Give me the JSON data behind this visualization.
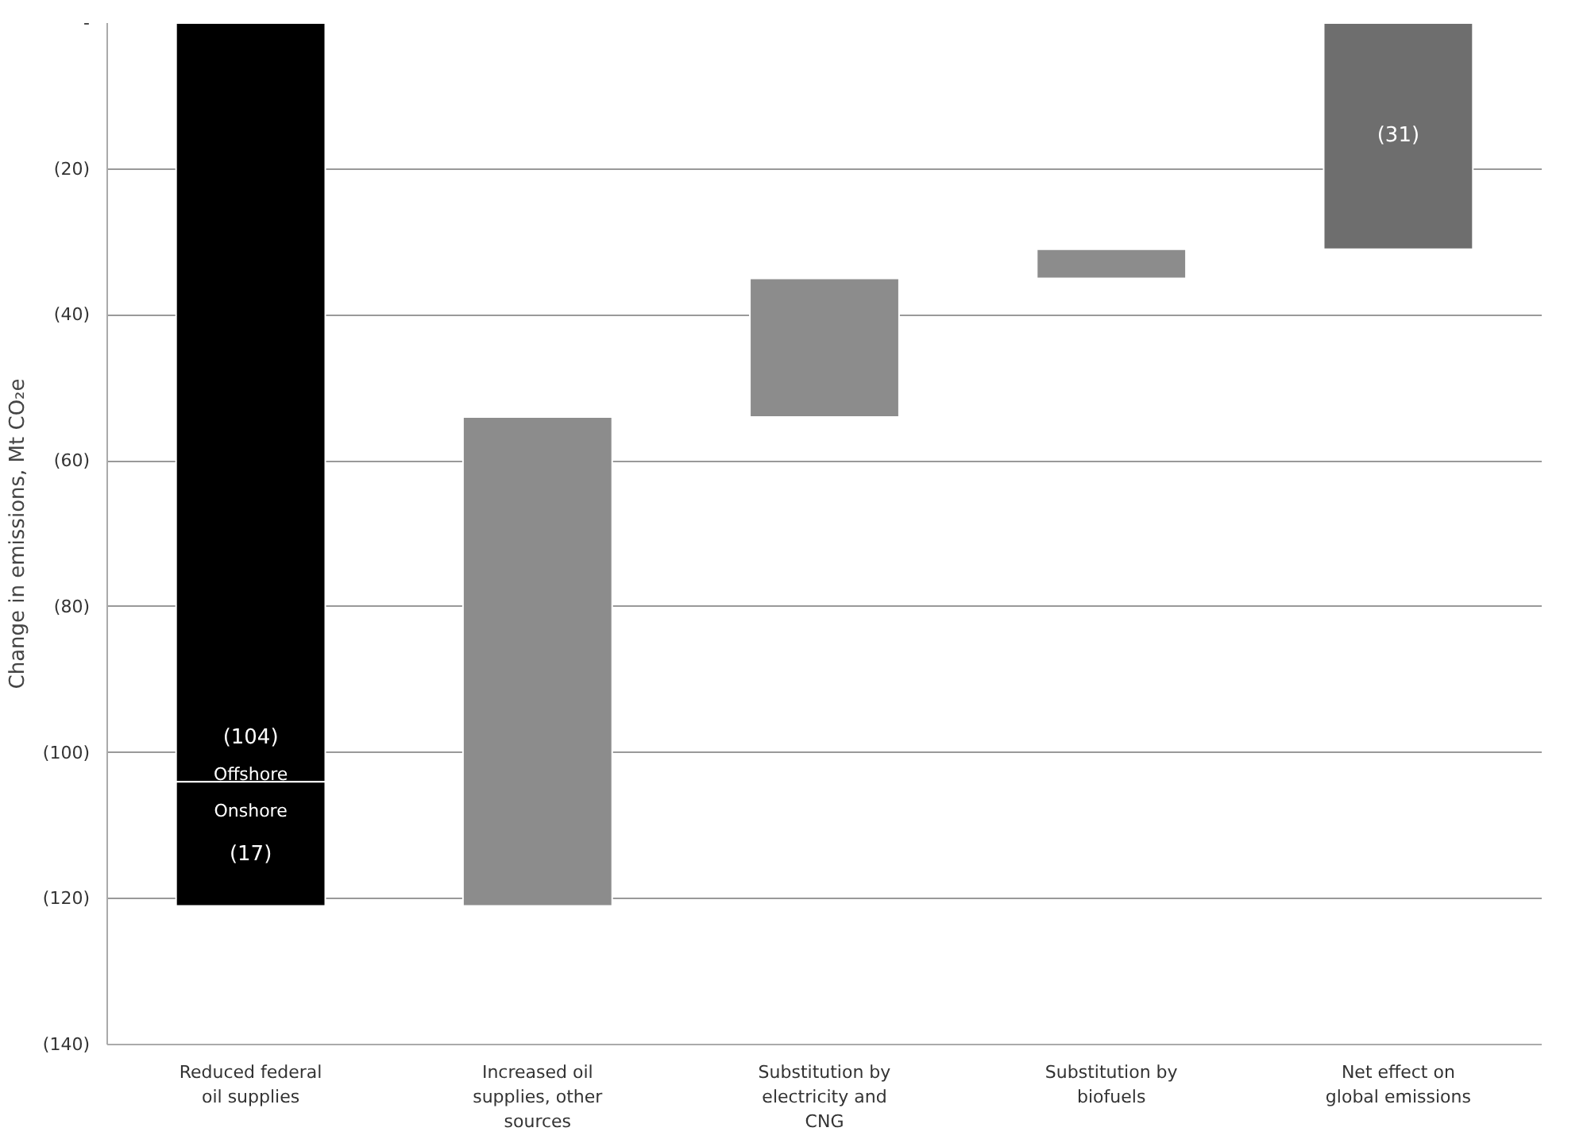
{
  "chart_data": {
    "type": "bar",
    "ylabel": "Change in emissions, Mt CO₂e",
    "categories": [
      "Reduced federal oil supplies",
      "Increased oil supplies, other sources",
      "Substitution by electricity and CNG",
      "Substitution by biofuels",
      "Net effect on global emissions"
    ],
    "series": [
      {
        "name": "Offshore",
        "color": "#000000",
        "values": [
          -104,
          null,
          null,
          null,
          null
        ],
        "base": [
          0,
          null,
          null,
          null,
          null
        ],
        "value_labels": [
          "(104)",
          null,
          null,
          null,
          null
        ]
      },
      {
        "name": "Onshore",
        "color": "#000000",
        "values": [
          -17,
          null,
          null,
          null,
          null
        ],
        "base": [
          -104,
          null,
          null,
          null,
          null
        ],
        "value_labels": [
          "(17)",
          null,
          null,
          null,
          null
        ]
      },
      {
        "colors": [
          null,
          "#8c8c8c",
          "#8c8c8c",
          "#8c8c8c",
          "#6e6e6e"
        ],
        "values": [
          null,
          67,
          19,
          4,
          -31
        ],
        "base": [
          null,
          -121,
          -54,
          -35,
          0
        ],
        "value_labels": [
          null,
          null,
          null,
          null,
          "(31)"
        ]
      }
    ],
    "ylim": [
      -140,
      0
    ],
    "yticks": [
      {
        "value": 0,
        "label": "-"
      },
      {
        "value": -20,
        "label": "(20)"
      },
      {
        "value": -40,
        "label": "(40)"
      },
      {
        "value": -60,
        "label": "(60)"
      },
      {
        "value": -80,
        "label": "(80)"
      },
      {
        "value": -100,
        "label": "(100)"
      },
      {
        "value": -120,
        "label": "(120)"
      },
      {
        "value": -140,
        "label": "(140)"
      }
    ],
    "grid": "y"
  }
}
